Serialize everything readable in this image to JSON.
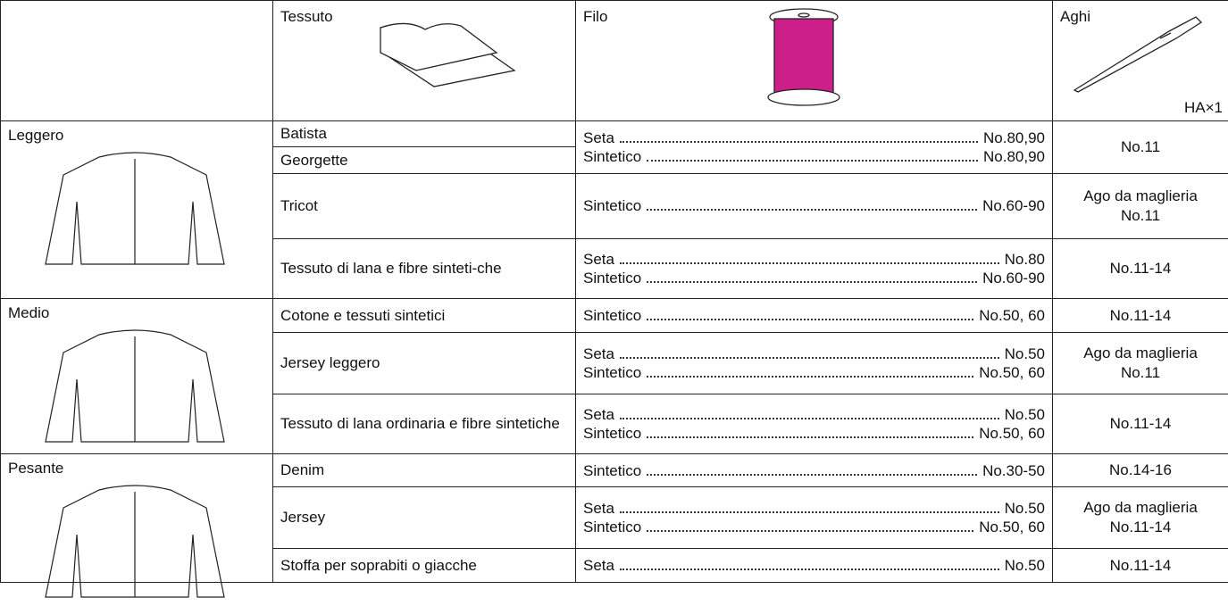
{
  "header": {
    "tessuto": "Tessuto",
    "filo": "Filo",
    "aghi": "Aghi",
    "needle_type": "HA×1"
  },
  "groups": [
    {
      "weight": "Leggero",
      "rows": [
        {
          "fabrics": [
            "Batista",
            "Georgette"
          ],
          "threads": [
            {
              "name": "Seta",
              "size": "No.80,90"
            },
            {
              "name": "Sintetico",
              "size": "No.80,90"
            }
          ],
          "needle": [
            "No.11"
          ]
        },
        {
          "fabrics": [
            "Tricot"
          ],
          "threads": [
            {
              "name": "Sintetico",
              "size": "No.60-90"
            }
          ],
          "needle": [
            "Ago da maglieria",
            "No.11"
          ]
        },
        {
          "fabrics": [
            "Tessuto di lana e fibre sinteti-che"
          ],
          "threads": [
            {
              "name": "Seta",
              "size": "No.80"
            },
            {
              "name": "Sintetico",
              "size": "No.60-90"
            }
          ],
          "needle": [
            "No.11-14"
          ]
        }
      ]
    },
    {
      "weight": "Medio",
      "rows": [
        {
          "fabrics": [
            "Cotone e tessuti sintetici"
          ],
          "threads": [
            {
              "name": "Sintetico",
              "size": "No.50, 60"
            }
          ],
          "needle": [
            "No.11-14"
          ]
        },
        {
          "fabrics": [
            "Jersey leggero"
          ],
          "threads": [
            {
              "name": "Seta",
              "size": "No.50"
            },
            {
              "name": "Sintetico",
              "size": "No.50, 60"
            }
          ],
          "needle": [
            "Ago da maglieria",
            "No.11"
          ]
        },
        {
          "fabrics": [
            "Tessuto di lana ordinaria e fibre sintetiche"
          ],
          "threads": [
            {
              "name": "Seta",
              "size": "No.50"
            },
            {
              "name": "Sintetico",
              "size": "No.50, 60"
            }
          ],
          "needle": [
            "No.11-14"
          ]
        }
      ]
    },
    {
      "weight": "Pesante",
      "rows": [
        {
          "fabrics": [
            "Denim"
          ],
          "threads": [
            {
              "name": "Sintetico",
              "size": "No.30-50"
            }
          ],
          "needle": [
            "No.14-16"
          ]
        },
        {
          "fabrics": [
            "Jersey"
          ],
          "threads": [
            {
              "name": "Seta",
              "size": "No.50"
            },
            {
              "name": "Sintetico",
              "size": "No.50, 60"
            }
          ],
          "needle": [
            "Ago da maglieria",
            "No.11-14"
          ]
        },
        {
          "fabrics": [
            "Stoffa per soprabiti o giacche"
          ],
          "threads": [
            {
              "name": "Seta",
              "size": "No.50"
            }
          ],
          "needle": [
            "No.11-14"
          ]
        }
      ]
    }
  ]
}
